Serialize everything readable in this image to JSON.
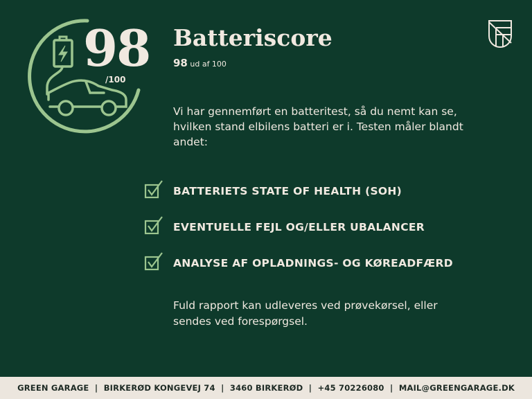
{
  "score": {
    "value": "98",
    "out_of": "/100",
    "fraction": 0.98
  },
  "header": {
    "title": "Batteriscore",
    "sub_value": "98",
    "sub_text": "ud af 100"
  },
  "intro": "Vi har gennemført en batteritest, så du nemt kan se, hvilken stand elbilens batteri er i. Testen måler blandt andet:",
  "items": [
    {
      "label": "BATTERIETS STATE OF HEALTH (SOH)",
      "icon": "checkbox-checked-icon"
    },
    {
      "label": "EVENTUELLE FEJL OG/ELLER UBALANCER",
      "icon": "checkbox-checked-icon"
    },
    {
      "label": "ANALYSE AF OPLADNINGS- OG KØREADFÆRD",
      "icon": "checkbox-checked-icon"
    }
  ],
  "outro": "Fuld rapport kan udleveres ved prøvekørsel, eller sendes ved forespørgsel.",
  "footer": "GREEN GARAGE  |  BIRKERØD KONGEVEJ 74  |  3460 BIRKERØD  |  +45 70226080  |  MAIL@GREENGARAGE.DK",
  "colors": {
    "background": "#0e3a2b",
    "accent": "#9cc58f",
    "text": "#f0e9e0",
    "footer_bg": "#ece6de"
  }
}
